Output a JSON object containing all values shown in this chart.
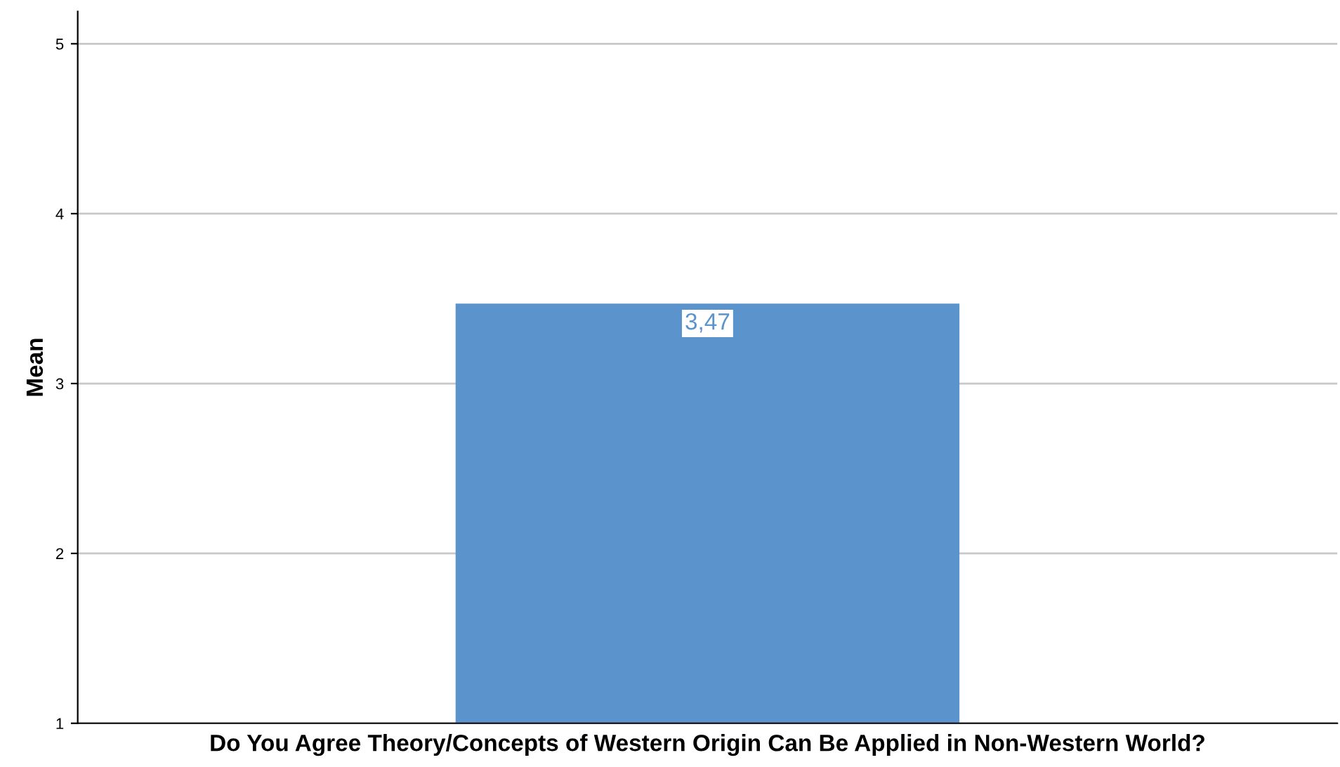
{
  "chart_data": {
    "type": "bar",
    "xlabel": "Do You Agree Theory/Concepts of Western Origin Can Be Applied in Non-Western World?",
    "ylabel": "Mean",
    "categories": [
      null
    ],
    "values": [
      3.47
    ],
    "value_labels": [
      "3,47"
    ],
    "color": "#5b93cc",
    "ylim": [
      1,
      5.19
    ],
    "yticks": [
      1,
      2,
      3,
      4,
      5
    ],
    "grid": "y"
  }
}
